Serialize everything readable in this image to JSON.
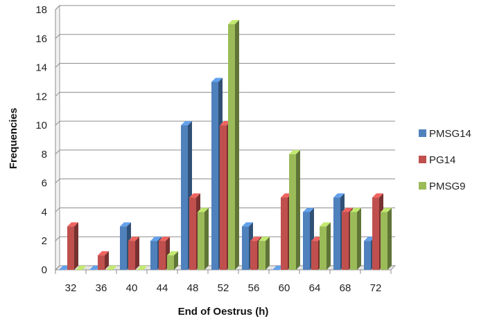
{
  "chart_data": {
    "type": "bar",
    "style": "3d-clustered-column",
    "xlabel": "End of Oestrus (h)",
    "ylabel": "Frequencies",
    "ylim": [
      0,
      18
    ],
    "yticks": [
      0,
      2,
      4,
      6,
      8,
      10,
      12,
      14,
      16,
      18
    ],
    "grid": true,
    "legend_position": "right",
    "categories": [
      "32",
      "36",
      "40",
      "44",
      "48",
      "52",
      "56",
      "60",
      "64",
      "68",
      "72"
    ],
    "series": [
      {
        "name": "PMSG14",
        "color": "#4f81bd",
        "values": [
          0,
          0,
          3,
          2,
          10,
          13,
          3,
          0,
          4,
          5,
          2
        ]
      },
      {
        "name": "PG14",
        "color": "#c0504d",
        "values": [
          3,
          1,
          2,
          2,
          5,
          10,
          2,
          5,
          2,
          4,
          5
        ]
      },
      {
        "name": "PMSG9",
        "color": "#9bbb59",
        "values": [
          0,
          0,
          0,
          1,
          4,
          17,
          2,
          8,
          3,
          4,
          4
        ]
      }
    ]
  }
}
